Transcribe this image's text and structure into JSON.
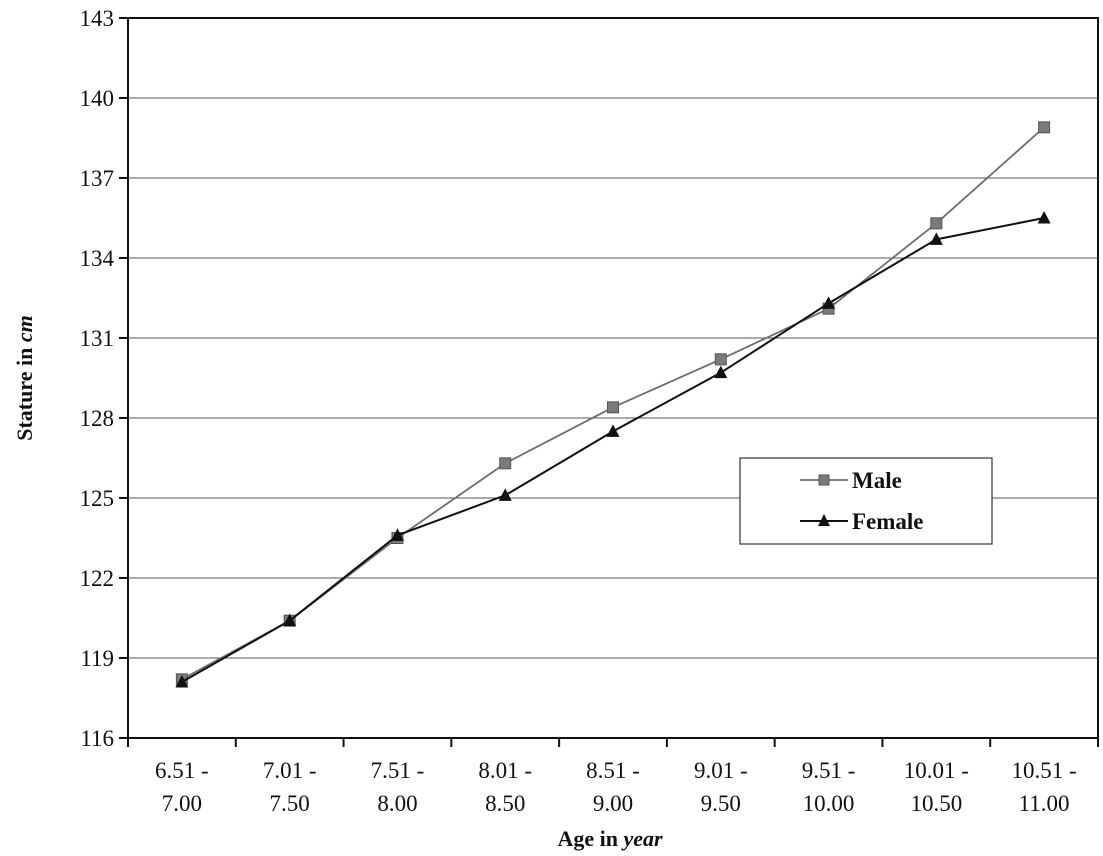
{
  "chart_data": {
    "type": "line",
    "xlabel_prefix": "Age in ",
    "xlabel_unit": "year",
    "ylabel_prefix": "Stature in ",
    "ylabel_unit": "cm",
    "categories": [
      [
        "6.51 -",
        "7.00"
      ],
      [
        "7.01 -",
        "7.50"
      ],
      [
        "7.51 -",
        "8.00"
      ],
      [
        "8.01 -",
        "8.50"
      ],
      [
        "8.51 -",
        "9.00"
      ],
      [
        "9.01 -",
        "9.50"
      ],
      [
        "9.51 -",
        "10.00"
      ],
      [
        "10.01 -",
        "10.50"
      ],
      [
        "10.51 -",
        "11.00"
      ]
    ],
    "yticks": [
      116,
      119,
      122,
      125,
      128,
      131,
      134,
      137,
      140,
      143
    ],
    "ylim": [
      116,
      143
    ],
    "grid": true,
    "legend_position": "center-right",
    "series": [
      {
        "name": "Male",
        "marker": "square",
        "color": "#6e6e6e",
        "values": [
          118.2,
          120.4,
          123.5,
          126.3,
          128.4,
          130.2,
          132.1,
          135.3,
          138.9
        ]
      },
      {
        "name": "Female",
        "marker": "triangle",
        "color": "#111111",
        "values": [
          118.1,
          120.4,
          123.6,
          125.1,
          127.5,
          129.7,
          132.3,
          134.7,
          135.5
        ]
      }
    ]
  }
}
